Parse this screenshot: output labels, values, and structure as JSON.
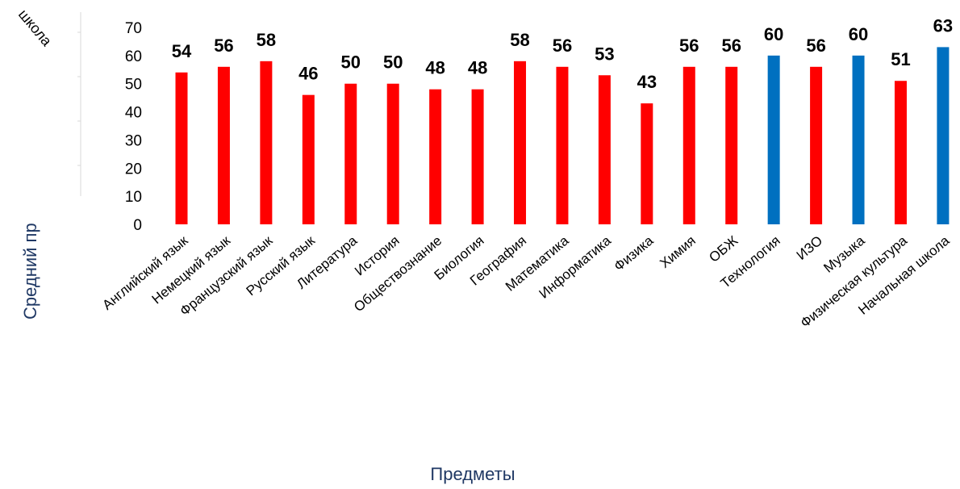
{
  "chart_data": {
    "type": "bar",
    "categories": [
      "Английский язык",
      "Немецкий язык",
      "Французский язык",
      "Русский язык",
      "Литература",
      "История",
      "Обществознание",
      "Биология",
      "География",
      "Математика",
      "Информатика",
      "Физика",
      "Химия",
      "ОБЖ",
      "Технология",
      "ИЗО",
      "Музыка",
      "Физическая культура",
      "Начальная школа"
    ],
    "values": [
      54,
      56,
      58,
      46,
      50,
      50,
      48,
      48,
      58,
      56,
      53,
      43,
      56,
      56,
      60,
      56,
      60,
      51,
      63
    ],
    "bar_colors": [
      "#ff0000",
      "#ff0000",
      "#ff0000",
      "#ff0000",
      "#ff0000",
      "#ff0000",
      "#ff0000",
      "#ff0000",
      "#ff0000",
      "#ff0000",
      "#ff0000",
      "#ff0000",
      "#ff0000",
      "#ff0000",
      "#0070c0",
      "#ff0000",
      "#0070c0",
      "#ff0000",
      "#0070c0"
    ],
    "xlabel": "Предметы",
    "ylabel": "Средний пр",
    "ylim": [
      0,
      70
    ],
    "yticks": [
      0,
      10,
      20,
      30,
      40,
      50,
      60,
      70
    ],
    "data_labels": true,
    "grid": false
  },
  "cropped_label": "школа",
  "colors": {
    "red": "#ff0000",
    "blue": "#0070c0",
    "axis_title": "#1f3864"
  }
}
